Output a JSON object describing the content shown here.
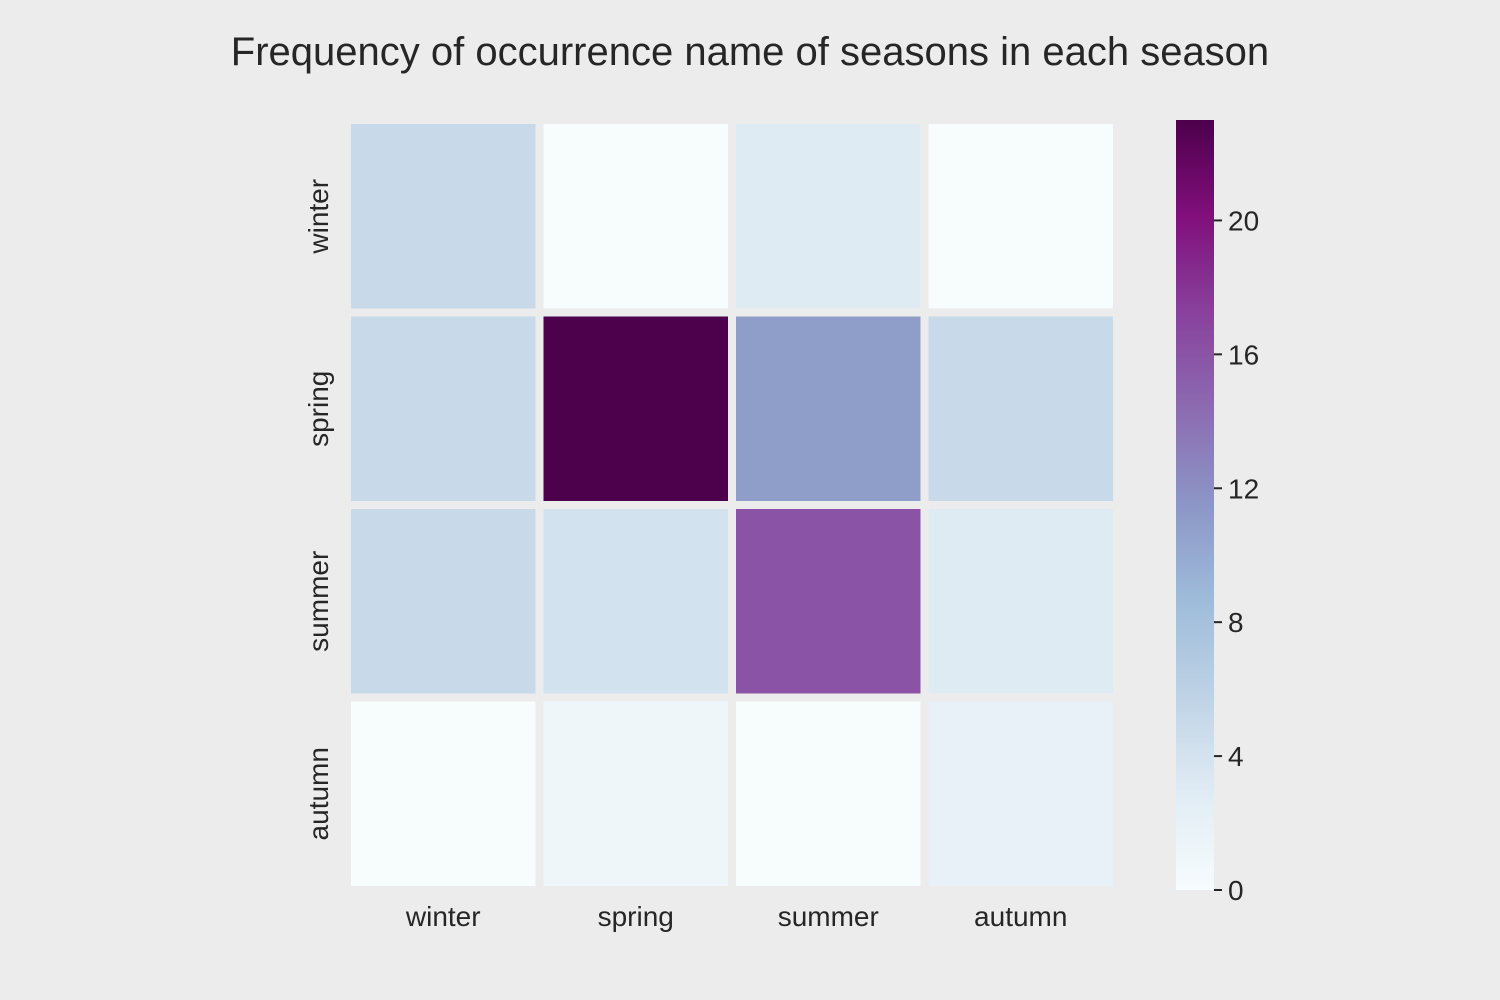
{
  "chart_data": {
    "type": "heatmap",
    "title": "Frequency of occurrence name of seasons in each season",
    "xlabel": "",
    "ylabel": "",
    "x_categories": [
      "winter",
      "spring",
      "summer",
      "autumn"
    ],
    "y_categories": [
      "winter",
      "spring",
      "summer",
      "autumn"
    ],
    "values": [
      [
        5,
        0,
        3,
        0
      ],
      [
        5,
        23,
        11,
        5
      ],
      [
        5,
        4,
        16,
        3
      ],
      [
        0,
        1,
        0,
        2
      ]
    ],
    "colorbar": {
      "min": 0,
      "max": 23,
      "ticks": [
        0,
        4,
        8,
        12,
        16,
        20
      ],
      "colormap": "BuPu",
      "stops": [
        "#f7fcfd",
        "#e0ecf4",
        "#bfd3e6",
        "#9ebcda",
        "#8c96c6",
        "#8c6bb1",
        "#88419d",
        "#810f7c",
        "#4d004b"
      ]
    },
    "grid": false,
    "background": "#ececec",
    "cell_gap_color": "#ececec"
  }
}
